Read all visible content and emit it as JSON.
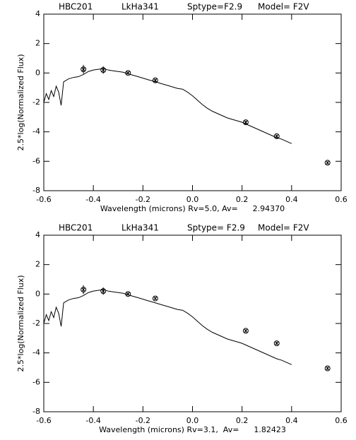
{
  "chart_data": [
    {
      "type": "line",
      "title_parts": [
        "HBC201",
        "LkHa341",
        "Sptype=F2.9",
        "Model= F2V"
      ],
      "x_label": "Wavelength (microns) Rv=5.0, Av=      2.94370",
      "y_label": "2.5*log(Normalized Flux)",
      "xlim": [
        -0.6,
        0.6
      ],
      "ylim": [
        -8,
        4
      ],
      "xticks": [
        -0.6,
        -0.4,
        -0.2,
        {
          "value": 0,
          "label": "0.0"
        },
        0.2,
        0.4,
        0.6
      ],
      "yticks": [
        -8,
        -6,
        -4,
        -2,
        0,
        2,
        4
      ],
      "series": [
        {
          "type": "line",
          "color": "#000000",
          "x": [
            -0.6,
            -0.59,
            -0.58,
            -0.57,
            -0.56,
            -0.55,
            -0.54,
            -0.53,
            -0.52,
            -0.5,
            -0.48,
            -0.46,
            -0.44,
            -0.42,
            -0.4,
            -0.38,
            -0.36,
            -0.34,
            -0.32,
            -0.3,
            -0.28,
            -0.26,
            -0.24,
            -0.22,
            -0.2,
            -0.18,
            -0.16,
            -0.14,
            -0.12,
            -0.1,
            -0.08,
            -0.06,
            -0.04,
            -0.02,
            0,
            0.02,
            0.04,
            0.06,
            0.08,
            0.1,
            0.12,
            0.14,
            0.16,
            0.18,
            0.2,
            0.22,
            0.24,
            0.26,
            0.28,
            0.3,
            0.32,
            0.34,
            0.36,
            0.38,
            0.4
          ],
          "values": [
            -2.0,
            -1.4,
            -1.8,
            -1.2,
            -1.6,
            -0.9,
            -1.3,
            -2.2,
            -0.6,
            -0.4,
            -0.3,
            -0.25,
            -0.1,
            0.1,
            0.2,
            0.25,
            0.3,
            0.2,
            0.15,
            0.1,
            0.05,
            -0.05,
            -0.15,
            -0.25,
            -0.35,
            -0.45,
            -0.55,
            -0.65,
            -0.75,
            -0.85,
            -0.95,
            -1.05,
            -1.1,
            -1.3,
            -1.55,
            -1.85,
            -2.15,
            -2.4,
            -2.6,
            -2.75,
            -2.9,
            -3.05,
            -3.15,
            -3.25,
            -3.35,
            -3.5,
            -3.65,
            -3.8,
            -3.95,
            -4.1,
            -4.25,
            -4.4,
            -4.5,
            -4.65,
            -4.8
          ]
        },
        {
          "type": "scatter",
          "color": "#000000",
          "x": [
            -0.44,
            -0.36,
            -0.26,
            -0.15,
            0.215,
            0.34,
            0.545
          ],
          "values": [
            0.25,
            0.2,
            0.0,
            -0.5,
            -3.35,
            -4.3,
            -6.1
          ],
          "errors": [
            0.3,
            0.25,
            0.1,
            0.1,
            0.1,
            0.1,
            0.1
          ]
        }
      ]
    },
    {
      "type": "line",
      "title_parts": [
        "HBC201",
        "LkHa341",
        "Sptype= F2.9",
        "Model= F2V"
      ],
      "x_label": "Wavelength (microns) Rv=3.1,  Av=      1.82423",
      "y_label": "2.5*log(Normalized Flux)",
      "xlim": [
        -0.6,
        0.6
      ],
      "ylim": [
        -8,
        4
      ],
      "xticks": [
        -0.6,
        -0.4,
        -0.2,
        {
          "value": 0,
          "label": "0.0"
        },
        0.2,
        0.4,
        0.6
      ],
      "yticks": [
        -8,
        -6,
        -4,
        -2,
        0,
        2,
        4
      ],
      "series": [
        {
          "type": "line",
          "color": "#000000",
          "x": [
            -0.6,
            -0.59,
            -0.58,
            -0.57,
            -0.56,
            -0.55,
            -0.54,
            -0.53,
            -0.52,
            -0.5,
            -0.48,
            -0.46,
            -0.44,
            -0.42,
            -0.4,
            -0.38,
            -0.36,
            -0.34,
            -0.32,
            -0.3,
            -0.28,
            -0.26,
            -0.24,
            -0.22,
            -0.2,
            -0.18,
            -0.16,
            -0.14,
            -0.12,
            -0.1,
            -0.08,
            -0.06,
            -0.04,
            -0.02,
            0,
            0.02,
            0.04,
            0.06,
            0.08,
            0.1,
            0.12,
            0.14,
            0.16,
            0.18,
            0.2,
            0.22,
            0.24,
            0.26,
            0.28,
            0.3,
            0.32,
            0.34,
            0.36,
            0.38,
            0.4
          ],
          "values": [
            -2.0,
            -1.4,
            -1.8,
            -1.2,
            -1.6,
            -0.9,
            -1.3,
            -2.2,
            -0.6,
            -0.4,
            -0.3,
            -0.25,
            -0.1,
            0.1,
            0.2,
            0.25,
            0.3,
            0.2,
            0.15,
            0.1,
            0.05,
            -0.05,
            -0.15,
            -0.25,
            -0.35,
            -0.45,
            -0.55,
            -0.65,
            -0.75,
            -0.85,
            -0.95,
            -1.05,
            -1.1,
            -1.3,
            -1.55,
            -1.85,
            -2.15,
            -2.4,
            -2.6,
            -2.75,
            -2.9,
            -3.05,
            -3.15,
            -3.25,
            -3.35,
            -3.5,
            -3.65,
            -3.8,
            -3.95,
            -4.1,
            -4.25,
            -4.4,
            -4.5,
            -4.65,
            -4.8
          ]
        },
        {
          "type": "scatter",
          "color": "#000000",
          "x": [
            -0.44,
            -0.36,
            -0.26,
            -0.15,
            0.215,
            0.34,
            0.545
          ],
          "values": [
            0.3,
            0.2,
            0.0,
            -0.3,
            -2.5,
            -3.35,
            -5.05
          ],
          "errors": [
            0.3,
            0.25,
            0.1,
            0.1,
            0.1,
            0.1,
            0.1
          ]
        }
      ]
    }
  ]
}
